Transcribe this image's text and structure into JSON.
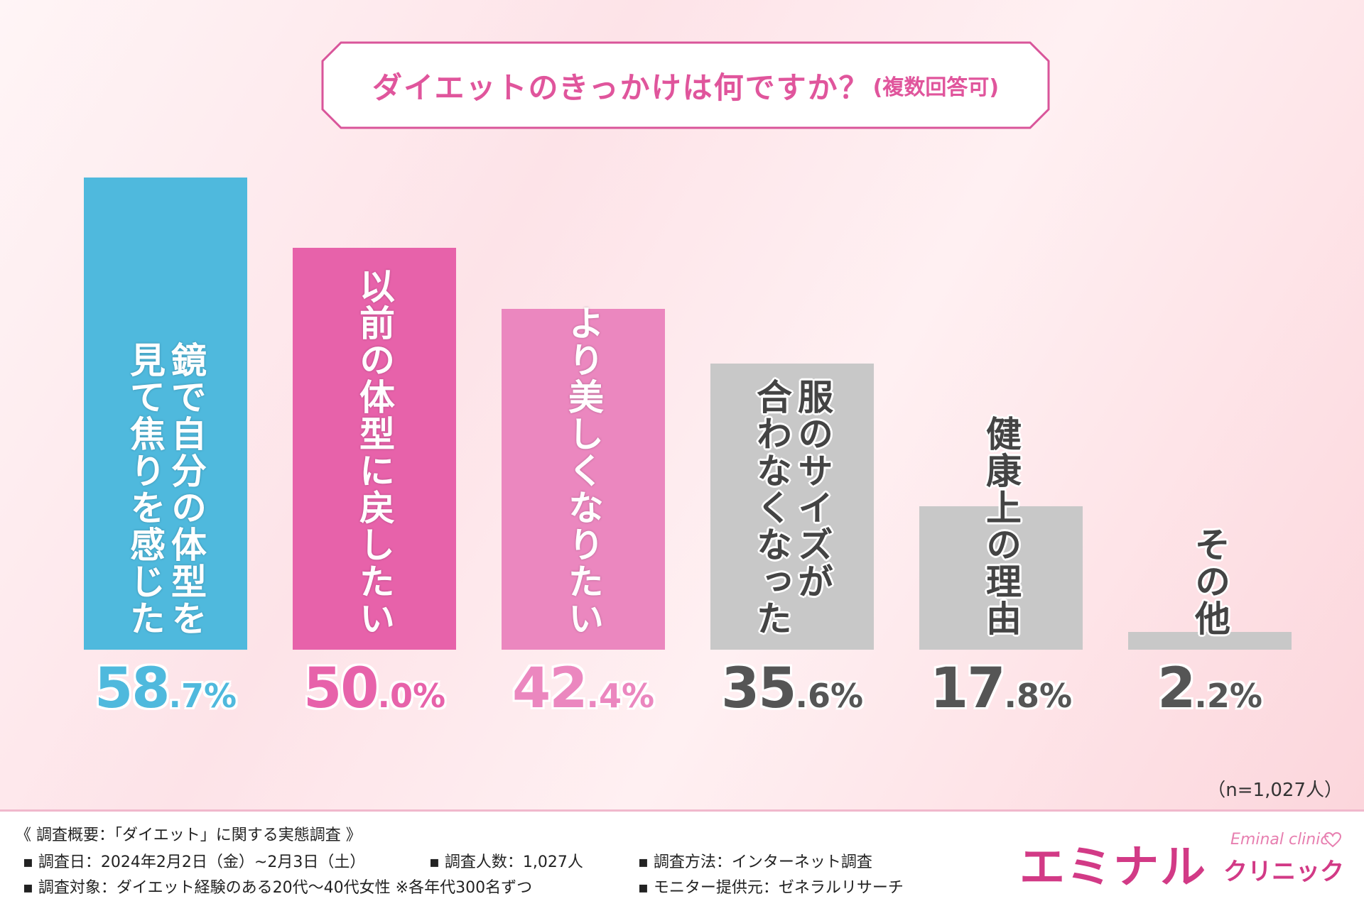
{
  "title": {
    "main": "ダイエットのきっかけは何ですか？",
    "sub": "(複数回答可)"
  },
  "chart_data": {
    "type": "bar",
    "categories": [
      [
        "鏡で自分の体型を",
        "見て焦りを感じた"
      ],
      [
        "以前の体型に戻したい"
      ],
      [
        "より美しくなりたい"
      ],
      [
        "服のサイズが",
        "合わなくなった"
      ],
      [
        "健康上の理由"
      ],
      [
        "その他"
      ]
    ],
    "values": [
      58.7,
      50.0,
      42.4,
      35.6,
      17.8,
      2.2
    ],
    "value_labels": [
      {
        "int": "58",
        "dec": ".7%"
      },
      {
        "int": "50",
        "dec": ".0%"
      },
      {
        "int": "42",
        "dec": ".4%"
      },
      {
        "int": "35",
        "dec": ".6%"
      },
      {
        "int": "17",
        "dec": ".8%"
      },
      {
        "int": "2",
        "dec": ".2%"
      }
    ],
    "colors": [
      "#4fb9dd",
      "#e762aa",
      "#eb87bf",
      "#c8c8c8",
      "#c8c8c8",
      "#c8c8c8"
    ],
    "label_colors": [
      "#4fb9dd",
      "#e762aa",
      "#eb87bf",
      "#555555",
      "#555555",
      "#555555"
    ],
    "ylim": [
      0,
      58.7
    ],
    "grid": false
  },
  "sample_size": "（n=1,027人）",
  "footer": {
    "heading": "《 調査概要：「ダイエット」に関する実態調査 》",
    "items": [
      "▪ 調査日：2024年2月2日（金）~2月3日（土）",
      "▪ 調査人数：1,027人",
      "▪ 調査方法：インターネット調査",
      "▪ 調査対象：ダイエット経験のある20代〜40代女性 ※各年代300名ずつ",
      "▪ モニター提供元：ゼネラルリサーチ"
    ]
  },
  "logo": {
    "jp": "エミナル",
    "jp_sub": "クリニック",
    "en": "Eminal clinic",
    "icon": "heart-icon",
    "color": "#d23a86"
  }
}
